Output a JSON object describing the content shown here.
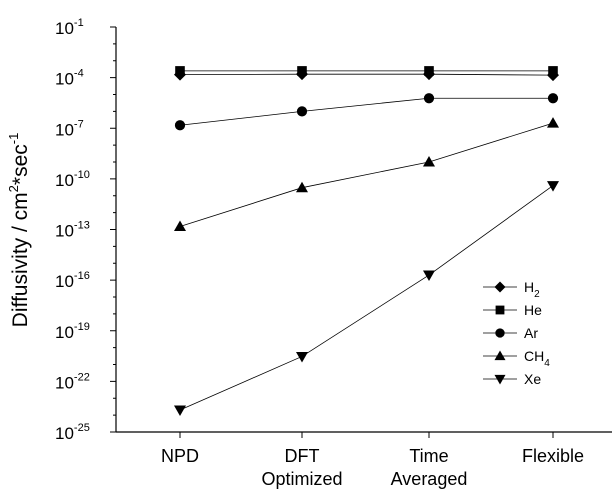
{
  "chart_data": {
    "type": "line",
    "title": "",
    "xlabel": "",
    "ylabel": "Diffusivity / cm²*sec⁻¹",
    "yscale": "log",
    "ylim": [
      1e-25,
      0.1
    ],
    "categories": [
      "NPD",
      "DFT Optimized",
      "Time Averaged",
      "Flexible"
    ],
    "grid": false,
    "legend_position": "right",
    "series": [
      {
        "name": "H2",
        "label_base": "H",
        "label_sub": "2",
        "marker": "diamond",
        "values": [
          0.00015,
          0.00016,
          0.00016,
          0.00014
        ]
      },
      {
        "name": "He",
        "label_base": "He",
        "label_sub": "",
        "marker": "square",
        "values": [
          0.00025,
          0.00025,
          0.00025,
          0.00025
        ]
      },
      {
        "name": "Ar",
        "label_base": "Ar",
        "label_sub": "",
        "marker": "circle",
        "values": [
          1.5e-07,
          1e-06,
          6e-06,
          6e-06
        ]
      },
      {
        "name": "CH4",
        "label_base": "CH",
        "label_sub": "4",
        "marker": "triangle-up",
        "values": [
          1.5e-13,
          3e-11,
          1e-09,
          2e-07
        ]
      },
      {
        "name": "Xe",
        "label_base": "Xe",
        "label_sub": "",
        "marker": "triangle-down",
        "values": [
          2e-24,
          3e-21,
          2e-16,
          4e-11
        ]
      }
    ],
    "y_ticks": [
      {
        "base": "10",
        "exp": "-1"
      },
      {
        "base": "10",
        "exp": "-4"
      },
      {
        "base": "10",
        "exp": "-7"
      },
      {
        "base": "10",
        "exp": "-10"
      },
      {
        "base": "10",
        "exp": "-13"
      },
      {
        "base": "10",
        "exp": "-16"
      },
      {
        "base": "10",
        "exp": "-19"
      },
      {
        "base": "10",
        "exp": "-22"
      },
      {
        "base": "10",
        "exp": "-25"
      }
    ],
    "x_tick_labels": [
      [
        "NPD"
      ],
      [
        "DFT",
        "Optimized"
      ],
      [
        "Time",
        "Averaged"
      ],
      [
        "Flexible"
      ]
    ],
    "ylabel_parts": {
      "base": "Diffusivity / cm",
      "exp1": "2",
      "mid": "*sec",
      "exp2": "-1"
    }
  }
}
